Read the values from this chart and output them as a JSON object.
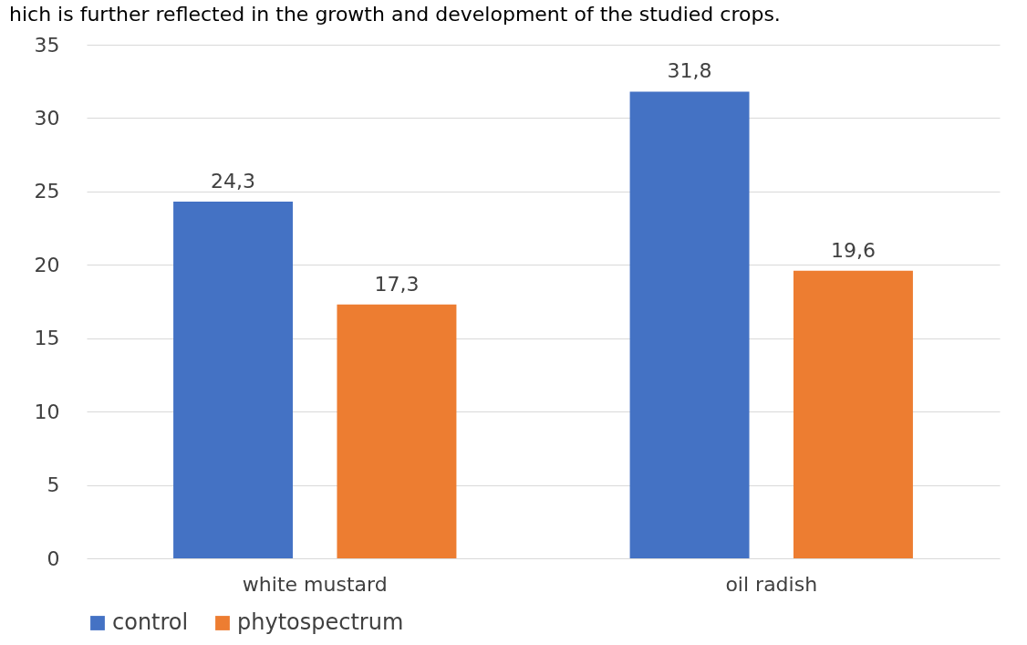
{
  "chart_data": {
    "type": "bar",
    "annotations": [
      "hich is further reflected in the growth and development of the studied crops."
    ],
    "categories": [
      "white mustard",
      "oil radish"
    ],
    "series": [
      {
        "name": "control",
        "color": "#4472c4",
        "values": [
          24.3,
          31.8
        ],
        "value_labels": [
          "24,3",
          "31,8"
        ]
      },
      {
        "name": "phytospectrum",
        "color": "#ed7d31",
        "values": [
          17.3,
          19.6
        ],
        "value_labels": [
          "17,3",
          "19,6"
        ]
      }
    ],
    "ylim": [
      0,
      35
    ],
    "yticks": [
      0,
      5,
      10,
      15,
      20,
      25,
      30,
      35
    ],
    "grid": "y",
    "legend": "bottom"
  }
}
